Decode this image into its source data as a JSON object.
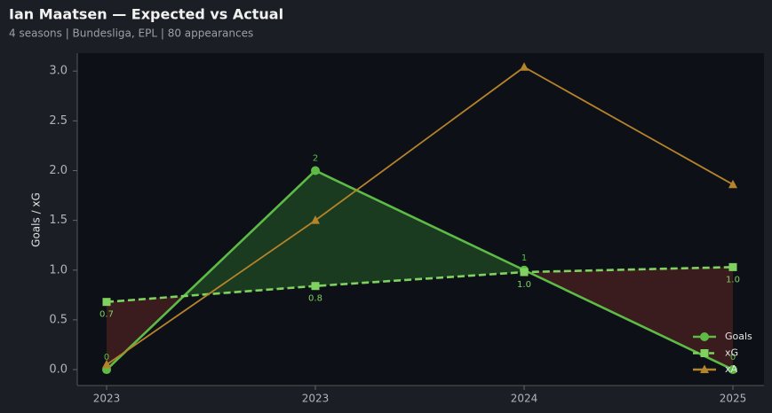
{
  "chart_data": {
    "type": "line",
    "title": "Ian Maatsen — Expected vs Actual",
    "subtitle": "4 seasons | Bundesliga, EPL | 80 appearances",
    "y_label": "Goals / xG",
    "categories": [
      "2023",
      "2023",
      "2024",
      "2025"
    ],
    "series": [
      {
        "name": "Goals",
        "color": "#5dbb46",
        "marker": "circle",
        "style": "solid",
        "label_position": "above",
        "values": [
          0,
          2,
          1,
          0
        ],
        "value_labels": [
          "0",
          "2",
          "1",
          "0"
        ]
      },
      {
        "name": "xG",
        "color": "#7fd260",
        "marker": "square",
        "style": "dashed",
        "label_position": "below",
        "values": [
          0.68,
          0.84,
          0.98,
          1.03
        ],
        "value_labels": [
          "0.7",
          "0.8",
          "1.0",
          "1.0"
        ]
      },
      {
        "name": "xA",
        "color": "#b5832a",
        "marker": "triangle",
        "style": "solid",
        "values": [
          0.05,
          1.5,
          3.04,
          1.86
        ]
      }
    ],
    "ylim": [
      -0.16,
      3.18
    ],
    "yticks": [
      {
        "value": 0,
        "label": "0.0"
      },
      0.5,
      {
        "value": 1,
        "label": "1.0"
      },
      1.5,
      {
        "value": 2,
        "label": "2.0"
      },
      2.5,
      {
        "value": 3,
        "label": "3.0"
      }
    ],
    "legend": "lower right",
    "fill_above_color": "#1f4a24",
    "fill_below_color": "#4a1f22"
  }
}
